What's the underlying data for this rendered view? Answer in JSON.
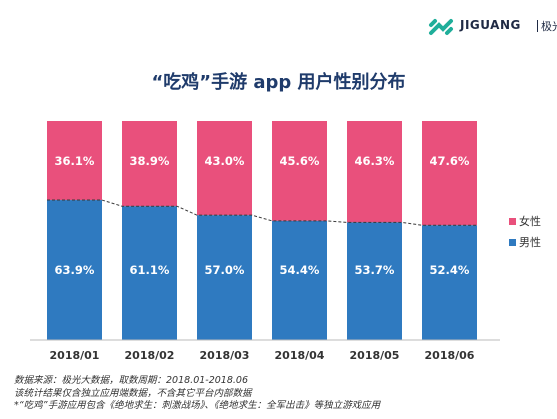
{
  "logo": {
    "brand": "JIGUANG",
    "brand_cn": "极光"
  },
  "title": "“吃鸡”手游 app 用户性别分布",
  "legend": {
    "female_label": "女性",
    "male_label": "男性"
  },
  "colors": {
    "female": "#e9507c",
    "male": "#2f7ac0",
    "dashed_line": "#3a3a3a",
    "axis": "#bbbbbb"
  },
  "chart_data": {
    "type": "bar",
    "stacked": true,
    "percent_stacked": true,
    "categories": [
      "2018/01",
      "2018/02",
      "2018/03",
      "2018/04",
      "2018/05",
      "2018/06"
    ],
    "series": [
      {
        "name": "男性",
        "values": [
          63.9,
          61.1,
          57.0,
          54.4,
          53.7,
          52.4
        ],
        "labels": [
          "63.9%",
          "61.1%",
          "57.0%",
          "54.4%",
          "53.7%",
          "52.4%"
        ]
      },
      {
        "name": "女性",
        "values": [
          36.1,
          38.9,
          43.0,
          45.6,
          46.3,
          47.6
        ],
        "labels": [
          "36.1%",
          "38.9%",
          "43.0%",
          "45.6%",
          "46.3%",
          "47.6%"
        ]
      }
    ],
    "ylim": [
      0,
      100
    ],
    "legend_position": "right",
    "title": "“吃鸡”手游 app 用户性别分布"
  },
  "footnotes": [
    "数据来源：极光大数据，取数周期：2018.01-2018.06",
    "该统计结果仅含独立应用端数据，不含其它平台内部数据",
    "*“吃鸡”手游应用包含《绝地求生：刺激战场》、《绝地求生：全军出击》等独立游戏应用"
  ]
}
